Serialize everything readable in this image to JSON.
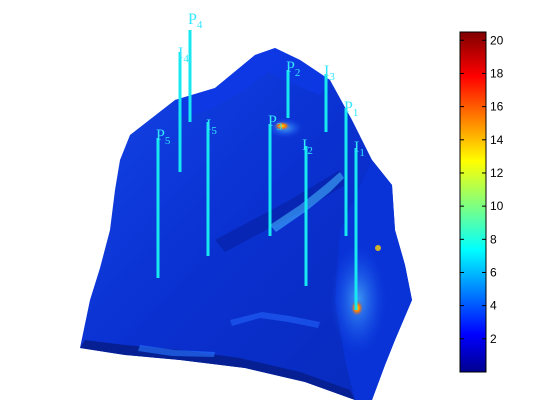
{
  "colors": {
    "well": "#18e8f0",
    "label": "#33e6ff",
    "surface_base": "#0a2fd6",
    "surface_dark": "#061c9a",
    "surface_light": "#2a73ff"
  },
  "colorbar": {
    "min": 0,
    "max": 20.5,
    "ticks": [
      {
        "value": 2,
        "label": "2"
      },
      {
        "value": 4,
        "label": "4"
      },
      {
        "value": 6,
        "label": "6"
      },
      {
        "value": 8,
        "label": "8"
      },
      {
        "value": 10,
        "label": "10"
      },
      {
        "value": 12,
        "label": "12"
      },
      {
        "value": 14,
        "label": "14"
      },
      {
        "value": 16,
        "label": "16"
      },
      {
        "value": 18,
        "label": "18"
      },
      {
        "value": 20,
        "label": "20"
      }
    ]
  },
  "wells": [
    {
      "id": "P4",
      "letter": "P",
      "sub": "4"
    },
    {
      "id": "I4",
      "letter": "I",
      "sub": "4"
    },
    {
      "id": "P2",
      "letter": "P",
      "sub": "2"
    },
    {
      "id": "I3",
      "letter": "I",
      "sub": "3"
    },
    {
      "id": "P1",
      "letter": "P",
      "sub": "1"
    },
    {
      "id": "P5",
      "letter": "P",
      "sub": "5"
    },
    {
      "id": "I5",
      "letter": "I",
      "sub": "5"
    },
    {
      "id": "P3",
      "letter": "P",
      "sub": "3"
    },
    {
      "id": "I2",
      "letter": "I",
      "sub": "2"
    },
    {
      "id": "I1",
      "letter": "I",
      "sub": "1"
    }
  ]
}
